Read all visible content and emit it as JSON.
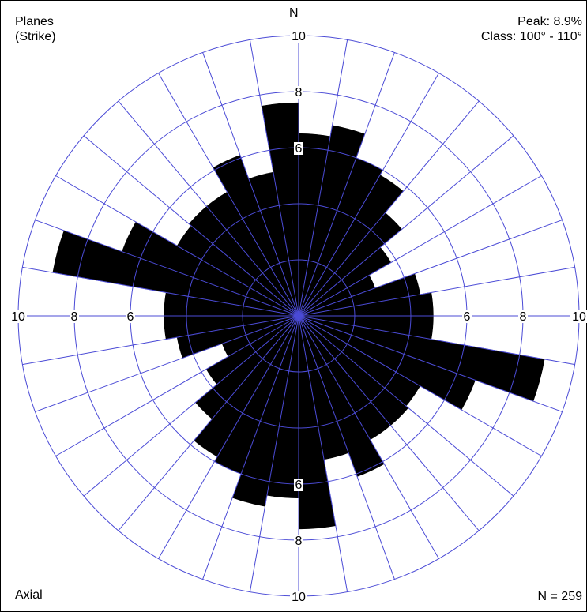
{
  "header": {
    "title_line1": "Planes",
    "title_line2": "(Strike)",
    "peak": "Peak: 8.9%",
    "class": "Class: 100° - 110°"
  },
  "footer": {
    "mode": "Axial",
    "count": "N = 259"
  },
  "north_label": "N",
  "chart_data": {
    "type": "rose",
    "projection": "polar",
    "axial": true,
    "class_width_deg": 10,
    "rmax": 10,
    "grid_rings": [
      2,
      4,
      6,
      8,
      10
    ],
    "ring_labels": [
      "6",
      "8",
      "10"
    ],
    "grid_color": "#4b4bd6",
    "petal_color": "#000000",
    "bins": [
      {
        "from": 0,
        "to": 10,
        "value": 6.5
      },
      {
        "from": 10,
        "to": 20,
        "value": 6.9
      },
      {
        "from": 20,
        "to": 30,
        "value": 6.0
      },
      {
        "from": 30,
        "to": 40,
        "value": 5.8
      },
      {
        "from": 40,
        "to": 50,
        "value": 4.8
      },
      {
        "from": 50,
        "to": 60,
        "value": 3.8
      },
      {
        "from": 60,
        "to": 70,
        "value": 2.9
      },
      {
        "from": 70,
        "to": 80,
        "value": 4.4
      },
      {
        "from": 80,
        "to": 90,
        "value": 4.8
      },
      {
        "from": 90,
        "to": 100,
        "value": 4.8
      },
      {
        "from": 100,
        "to": 110,
        "value": 8.9
      },
      {
        "from": 110,
        "to": 120,
        "value": 6.7
      },
      {
        "from": 120,
        "to": 130,
        "value": 5.0
      },
      {
        "from": 130,
        "to": 140,
        "value": 5.1
      },
      {
        "from": 140,
        "to": 150,
        "value": 5.1
      },
      {
        "from": 150,
        "to": 160,
        "value": 6.1
      },
      {
        "from": 160,
        "to": 170,
        "value": 5.2
      },
      {
        "from": 170,
        "to": 180,
        "value": 7.6
      }
    ]
  }
}
